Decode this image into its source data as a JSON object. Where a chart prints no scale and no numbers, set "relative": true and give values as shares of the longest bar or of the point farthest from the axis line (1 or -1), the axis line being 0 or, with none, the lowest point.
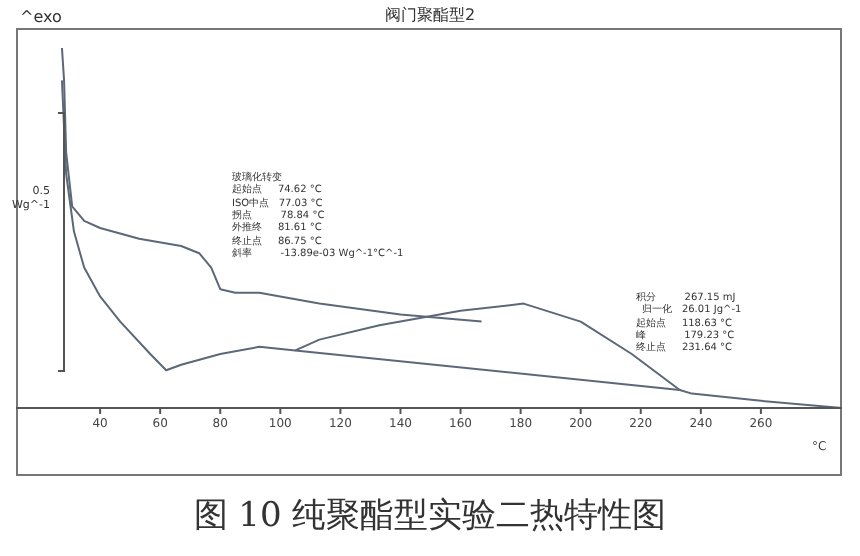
{
  "chart_data": {
    "type": "line",
    "title": "阀门聚酯型2",
    "xlabel": "°C",
    "relative": true,
    "xlim": [
      12,
      287
    ],
    "xticks": [
      40,
      60,
      80,
      100,
      120,
      140,
      160,
      180,
      200,
      220,
      240,
      260
    ],
    "tick_labels": "x",
    "marker": "none",
    "line_style": "solid",
    "annotations": [
      "^exo",
      "0.5\nWg^-1",
      "玻璃化转变",
      "起始点     74.62 °C",
      "ISO中点   77.03 °C",
      "拐点         78.84 °C",
      "外推终     81.61 °C",
      "终止点     86.75 °C",
      "斜率         -13.89e-03 Wg^-1°C^-1",
      "积分         267.15 mJ",
      "  归一化   26.01 Jg^-1",
      "起始点     118.63 °C",
      "峰            179.23 °C",
      "终止点     231.64 °C",
      "图 10 纯聚酯型实验二热特性图"
    ],
    "series": [
      {
        "color": "#5c6878",
        "x": [
          27.3,
          28,
          28.7,
          30.7,
          34.7,
          40,
          53,
          67,
          73,
          77,
          80,
          85,
          93,
          113,
          140,
          167
        ],
        "values": [
          1,
          0.91,
          0.71,
          0.56,
          0.52,
          0.5,
          0.47,
          0.45,
          0.43,
          0.39,
          0.33,
          0.32,
          0.32,
          0.29,
          0.26,
          0.24
        ]
      },
      {
        "color": "#5c6878",
        "x": [
          27.3,
          28.7,
          31.3,
          34.7,
          40,
          46.7,
          56.7,
          62,
          67,
          80,
          93,
          105,
          113,
          133,
          160,
          181,
          200,
          217,
          233,
          237,
          260,
          287
        ],
        "values": [
          0.91,
          0.65,
          0.49,
          0.39,
          0.31,
          0.24,
          0.15,
          0.105,
          0.12,
          0.15,
          0.17,
          0.16,
          0.19,
          0.23,
          0.27,
          0.29,
          0.24,
          0.15,
          0.05,
          0.04,
          0.02,
          0
        ]
      },
      {
        "color": "#5c6878",
        "x": [
          105,
          233
        ],
        "values": [
          0.16,
          0.05
        ]
      }
    ]
  }
}
